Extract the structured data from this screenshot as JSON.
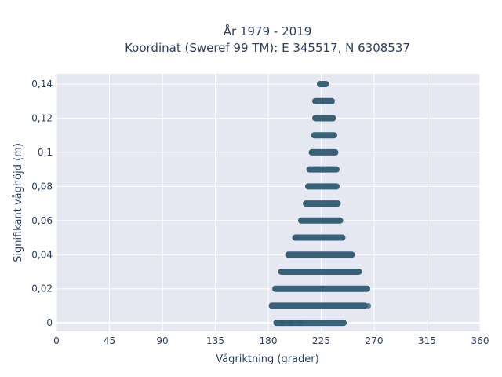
{
  "chart_data": {
    "type": "scatter",
    "title": [
      "År 1979 - 2019",
      "Koordinat (Sweref 99 TM): E 345517, N 6308537"
    ],
    "xlabel": "Vågriktning (grader)",
    "ylabel": "Signifikant våghöjd (m)",
    "xlim": [
      0,
      360
    ],
    "ylim": [
      -0.005,
      0.146
    ],
    "x_ticks": [
      0,
      45,
      90,
      135,
      180,
      225,
      270,
      315,
      360
    ],
    "x_tick_labels": [
      "0",
      "45",
      "90",
      "135",
      "180",
      "225",
      "270",
      "315",
      "360"
    ],
    "y_ticks": [
      0,
      0.02,
      0.04,
      0.06,
      0.08,
      0.1,
      0.12,
      0.14
    ],
    "y_tick_labels": [
      "0",
      "0,02",
      "0,04",
      "0,06",
      "0,08",
      "0,1",
      "0,12",
      "0,14"
    ],
    "grid": true,
    "marker_color": "#2e5a70",
    "background_color": "#e5e8f0",
    "bands": [
      {
        "y": 0.0,
        "x_min": 187,
        "x_max": 244
      },
      {
        "y": 0.01,
        "x_min": 183,
        "x_max": 262
      },
      {
        "y": 0.02,
        "x_min": 186,
        "x_max": 264
      },
      {
        "y": 0.03,
        "x_min": 191,
        "x_max": 257
      },
      {
        "y": 0.04,
        "x_min": 197,
        "x_max": 251
      },
      {
        "y": 0.05,
        "x_min": 203,
        "x_max": 243
      },
      {
        "y": 0.06,
        "x_min": 208,
        "x_max": 241
      },
      {
        "y": 0.07,
        "x_min": 212,
        "x_max": 239
      },
      {
        "y": 0.08,
        "x_min": 214,
        "x_max": 238
      },
      {
        "y": 0.09,
        "x_min": 215,
        "x_max": 238
      },
      {
        "y": 0.1,
        "x_min": 217,
        "x_max": 237
      },
      {
        "y": 0.11,
        "x_min": 219,
        "x_max": 236
      },
      {
        "y": 0.12,
        "x_min": 220,
        "x_max": 235
      },
      {
        "y": 0.13,
        "x_min": 220,
        "x_max": 234
      },
      {
        "y": 0.14,
        "x_min": 224,
        "x_max": 229
      }
    ],
    "points": [
      {
        "x": 265,
        "y": 0.01
      },
      {
        "x": 204,
        "y": 0.05
      },
      {
        "x": 192,
        "y": 0.0
      },
      {
        "x": 199,
        "y": 0.0
      },
      {
        "x": 207,
        "y": 0.0
      }
    ]
  }
}
